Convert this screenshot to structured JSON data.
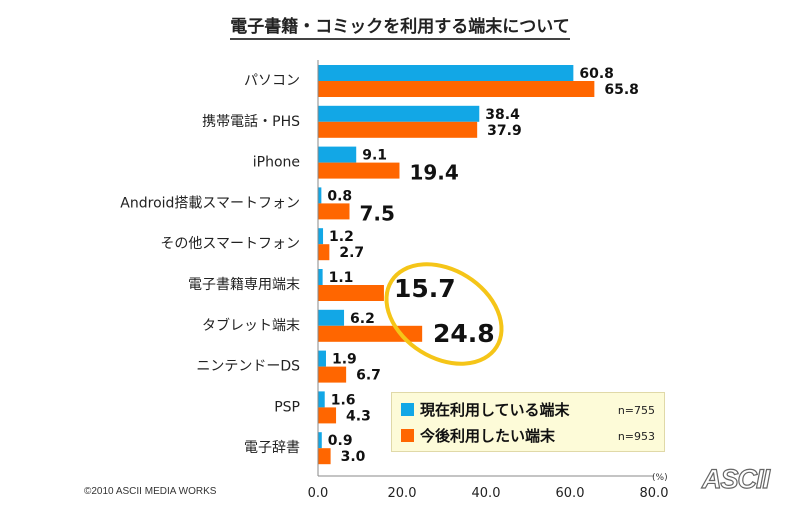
{
  "title": "電子書籍・コミックを利用する端末について",
  "copyright": "©2010 ASCII MEDIA WORKS",
  "logo": "ASCII",
  "unit": "(%)",
  "legend": [
    {
      "label": "現在利用している端末",
      "n": "n=755",
      "color": "#12a7e6"
    },
    {
      "label": "今後利用したい端末",
      "n": "n=953",
      "color": "#ff6600"
    }
  ],
  "highlight": {
    "categories": [
      "電子書籍専用端末",
      "タブレット端末"
    ],
    "series": "今後利用したい端末",
    "color": "#f5c518"
  },
  "chart_data": {
    "type": "bar",
    "orientation": "horizontal",
    "title": "電子書籍・コミックを利用する端末について",
    "xlabel": "(%)",
    "ylabel": "",
    "xlim": [
      0,
      80
    ],
    "xticks": [
      "0.0",
      "20.0",
      "40.0",
      "60.0",
      "80.0"
    ],
    "xtick_values": [
      0,
      20,
      40,
      60,
      80
    ],
    "grid": false,
    "legend_position": "bottom-right",
    "categories": [
      "パソコン",
      "携帯電話・PHS",
      "iPhone",
      "Android搭載スマートフォン",
      "その他スマートフォン",
      "電子書籍専用端末",
      "タブレット端末",
      "ニンテンドーDS",
      "PSP",
      "電子辞書"
    ],
    "series": [
      {
        "name": "現在利用している端末",
        "n": 755,
        "color": "#12a7e6",
        "values": [
          60.8,
          38.4,
          9.1,
          0.8,
          1.2,
          1.1,
          6.2,
          1.9,
          1.6,
          0.9
        ],
        "labels": [
          "60.8",
          "38.4",
          "9.1",
          "0.8",
          "1.2",
          "1.1",
          "6.2",
          "1.9",
          "1.6",
          "0.9"
        ]
      },
      {
        "name": "今後利用したい端末",
        "n": 953,
        "color": "#ff6600",
        "values": [
          65.8,
          37.9,
          19.4,
          7.5,
          2.7,
          15.7,
          24.8,
          6.7,
          4.3,
          3.0
        ],
        "labels": [
          "65.8",
          "37.9",
          "19.4",
          "7.5",
          "2.7",
          "15.7",
          "24.8",
          "6.7",
          "4.3",
          "3.0"
        ]
      }
    ],
    "emphasized_labels": {
      "今後利用したい端末": {
        "iPhone": "mid",
        "Android搭載スマートフォン": "mid",
        "電子書籍専用端末": "big",
        "タブレット端末": "big"
      }
    }
  }
}
